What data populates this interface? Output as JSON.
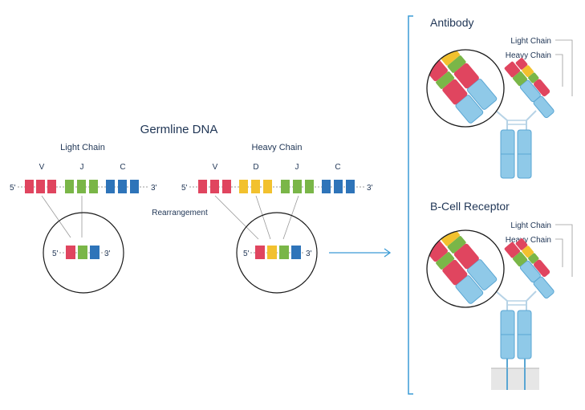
{
  "germline": {
    "title": "Germline DNA",
    "light_label": "Light Chain",
    "heavy_label": "Heavy Chain",
    "seg_v": "V",
    "seg_d": "D",
    "seg_j": "J",
    "seg_c": "C",
    "five_prime": "5'",
    "three_prime": "3'",
    "rearrangement": "Rearrangement"
  },
  "antibody": {
    "title": "Antibody",
    "light_chain": "Light Chain",
    "heavy_chain": "Heavy Chain"
  },
  "bcr": {
    "title": "B-Cell Receptor",
    "light_chain": "Light Chain",
    "heavy_chain": "Heavy Chain"
  },
  "colors": {
    "v_segment": "#e0455f",
    "d_segment": "#f2c12e",
    "j_segment": "#7ab648",
    "c_segment": "#2e74b9",
    "heavy_const": "#8fc9e8",
    "outline": "#2e74b9",
    "text": "#1f3555",
    "line": "#9a9a9a",
    "bracket": "#3a9bd5"
  }
}
